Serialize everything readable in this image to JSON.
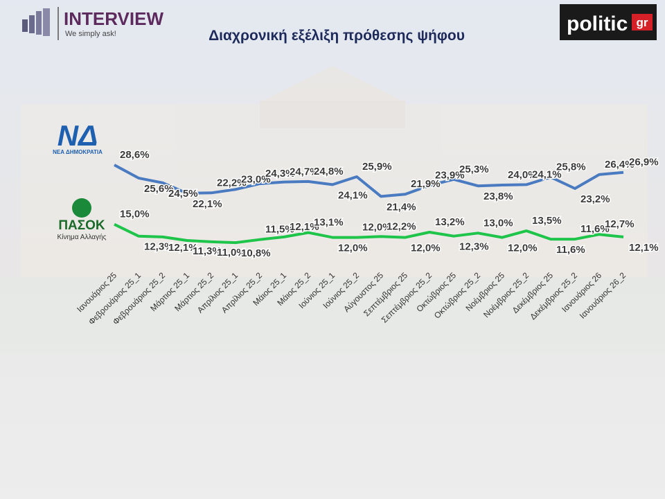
{
  "header": {
    "brand": "INTERVIEW",
    "tagline": "We simply ask!",
    "partner_main": "politic",
    "partner_suffix": "gr"
  },
  "party_logos": {
    "nd_mark": "ΝΔ",
    "nd_name": "ΝΕΑ ΔΗΜΟΚΡΑΤΙΑ",
    "pasok_mark": "ΠΑΣΟΚ",
    "pasok_name": "Κίνημα Αλλαγής"
  },
  "chart_data": {
    "type": "line",
    "title": "Διαχρονική εξέλιξη πρόθεσης ψήφου",
    "categories": [
      "Ιανουάριος 25",
      "Φεβρουάριος 25_1",
      "Φεβρουάριος 25_2",
      "Μάρτιος 25_1",
      "Μάρτιος 25_2",
      "Απρίλιος 25_1",
      "Απρίλιος 25_2",
      "Μάιος 25_1",
      "Μάιος 25_2",
      "Ιούνιος 25_1",
      "Ιούνιος 25_2",
      "Αύγουστος 25",
      "Σεπτέμβριος 25",
      "Σεπτέμβριος 25_2",
      "Οκτώβριος 25",
      "Οκτώβριος 25_2",
      "Νοέμβριος 25",
      "Νοέμβριος 25_2",
      "Δεκέμβριος 25",
      "Δεκέμβριος 25_2",
      "Ιανουάριος 26",
      "Ιανουάριος 26_2"
    ],
    "series": [
      {
        "name": "ΝΕΑ ΔΗΜΟΚΡΑΤΙΑ",
        "color": "#4a7ac0",
        "values": [
          28.6,
          25.6,
          24.5,
          22.1,
          22.2,
          23.0,
          24.3,
          24.7,
          24.8,
          24.1,
          25.9,
          21.4,
          21.9,
          23.9,
          25.3,
          23.8,
          24.0,
          24.1,
          25.8,
          23.2,
          26.4,
          26.9
        ],
        "value_labels": [
          "28,6%",
          "25,6%",
          "24,5%",
          "22,1%",
          "22,2%",
          "23,0%",
          "24,3%",
          "24,7%",
          "24,8%",
          "24,1%",
          "25,9%",
          "21,4%",
          "21,9%",
          "23,9%",
          "25,3%",
          "23,8%",
          "24,0%",
          "24,1%",
          "25,8%",
          "23,2%",
          "26,4%",
          "26,9%"
        ]
      },
      {
        "name": "ΠΑΣΟΚ",
        "color": "#1fc44a",
        "values": [
          15.0,
          12.3,
          12.1,
          11.3,
          11.0,
          10.8,
          11.5,
          12.1,
          13.1,
          12.0,
          12.0,
          12.2,
          12.0,
          13.2,
          12.3,
          13.0,
          12.0,
          13.5,
          11.6,
          11.6,
          12.7,
          12.1
        ],
        "value_labels": [
          "15,0%",
          "12,3%",
          "12,1%",
          "11,3%",
          "11,0%",
          "10,8%",
          "11,5%",
          "12,1%",
          "13,1%",
          "12,0%",
          "12,0%",
          "12,2%",
          "12,0%",
          "13,2%",
          "12,3%",
          "13,0%",
          "12,0%",
          "13,5%",
          "11,6%",
          "11,6%",
          "12,7%",
          "12,1%"
        ]
      }
    ]
  }
}
